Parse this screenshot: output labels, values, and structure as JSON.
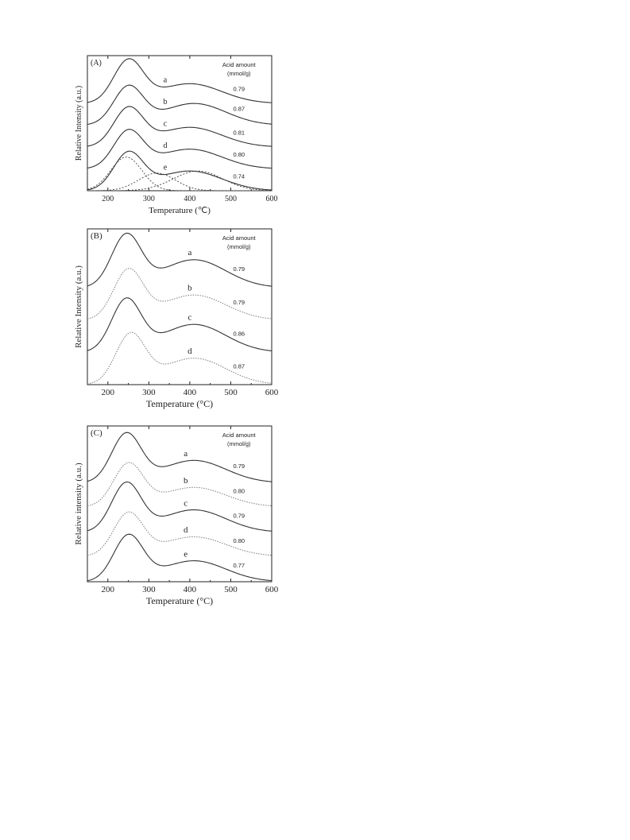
{
  "chart_data": [
    {
      "type": "line",
      "panel_label": "(A)",
      "xlabel": "Temperature (℃)",
      "ylabel": "Relative Intensity (a.u.)",
      "xlim": [
        150,
        600
      ],
      "xticks": [
        200,
        300,
        400,
        500,
        600
      ],
      "legend_title": [
        "Acid amount",
        "(mmol/g)"
      ],
      "series": [
        {
          "label": "a",
          "acid_amount": "0.79",
          "style": "solid",
          "offset": 4.2,
          "low_peak": 250,
          "low_height": 2.0,
          "high_peak": 400,
          "high_height": 0.95
        },
        {
          "label": "b",
          "acid_amount": "0.87",
          "style": "solid",
          "offset": 3.15,
          "low_peak": 250,
          "low_height": 1.8,
          "high_peak": 410,
          "high_height": 1.05
        },
        {
          "label": "c",
          "acid_amount": "0.81",
          "style": "solid",
          "offset": 2.1,
          "low_peak": 250,
          "low_height": 1.8,
          "high_peak": 400,
          "high_height": 0.95
        },
        {
          "label": "d",
          "acid_amount": "0.80",
          "style": "solid",
          "offset": 1.05,
          "low_peak": 250,
          "low_height": 1.75,
          "high_peak": 400,
          "high_height": 0.95
        },
        {
          "label": "e",
          "acid_amount": "0.74",
          "style": "solid",
          "offset": 0.0,
          "low_peak": 250,
          "low_height": 1.75,
          "high_peak": 400,
          "high_height": 0.95
        }
      ],
      "deconvolution": [
        {
          "center": 245,
          "height": 1.62,
          "width": 38
        },
        {
          "center": 320,
          "height": 0.85,
          "width": 45
        },
        {
          "center": 420,
          "height": 0.95,
          "width": 60
        }
      ]
    },
    {
      "type": "line",
      "panel_label": "(B)",
      "xlabel": "Temperature (°C)",
      "ylabel": "Relative Intensity (a.u.)",
      "xlim": [
        150,
        600
      ],
      "xticks": [
        200,
        300,
        400,
        500,
        600
      ],
      "legend_title": [
        "Acid amount",
        "(mmol/g)"
      ],
      "series": [
        {
          "label": "a",
          "acid_amount": "0.79",
          "style": "solid",
          "offset": 3.3,
          "low_peak": 245,
          "low_height": 1.75,
          "high_peak": 410,
          "high_height": 0.95
        },
        {
          "label": "b",
          "acid_amount": "0.79",
          "style": "dotted",
          "offset": 2.2,
          "low_peak": 250,
          "low_height": 1.65,
          "high_peak": 410,
          "high_height": 0.85
        },
        {
          "label": "c",
          "acid_amount": "0.86",
          "style": "solid",
          "offset": 1.1,
          "low_peak": 245,
          "low_height": 1.75,
          "high_peak": 410,
          "high_height": 0.95
        },
        {
          "label": "d",
          "acid_amount": "0.87",
          "style": "dotted",
          "offset": 0.0,
          "low_peak": 255,
          "low_height": 1.65,
          "high_peak": 410,
          "high_height": 0.9
        }
      ]
    },
    {
      "type": "line",
      "panel_label": "(C)",
      "xlabel": "Temperature (°C)",
      "ylabel": "Relative intensity (a.u.)",
      "xlim": [
        150,
        600
      ],
      "xticks": [
        200,
        300,
        400,
        500,
        600
      ],
      "legend_title": [
        "Acid amount",
        "(mmol/g)"
      ],
      "series": [
        {
          "label": "a",
          "acid_amount": "0.79",
          "style": "solid",
          "offset": 3.3,
          "low_peak": 245,
          "low_height": 1.6,
          "high_peak": 410,
          "high_height": 0.75
        },
        {
          "label": "b",
          "acid_amount": "0.80",
          "style": "dotted",
          "offset": 2.5,
          "low_peak": 250,
          "low_height": 1.4,
          "high_peak": 410,
          "high_height": 0.65
        },
        {
          "label": "c",
          "acid_amount": "0.79",
          "style": "solid",
          "offset": 1.65,
          "low_peak": 245,
          "low_height": 1.6,
          "high_peak": 410,
          "high_height": 0.75
        },
        {
          "label": "d",
          "acid_amount": "0.80",
          "style": "dotted",
          "offset": 0.85,
          "low_peak": 250,
          "low_height": 1.4,
          "high_peak": 410,
          "high_height": 0.65
        },
        {
          "label": "e",
          "acid_amount": "0.77",
          "style": "solid",
          "offset": 0.0,
          "low_peak": 250,
          "low_height": 1.5,
          "high_peak": 410,
          "high_height": 0.7
        }
      ]
    }
  ]
}
